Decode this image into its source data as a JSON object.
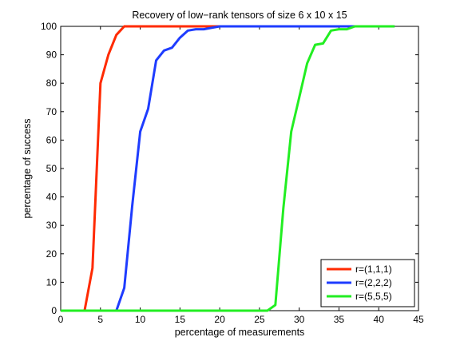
{
  "chart_data": {
    "type": "line",
    "title": "Recovery of low−rank tensors of size 6 x 10 x 15",
    "xlabel": "percentage of measurements",
    "ylabel": "percentage of success",
    "xlim": [
      0,
      45
    ],
    "ylim": [
      0,
      100
    ],
    "xticks": [
      0,
      5,
      10,
      15,
      20,
      25,
      30,
      35,
      40,
      45
    ],
    "yticks": [
      0,
      10,
      20,
      30,
      40,
      50,
      60,
      70,
      80,
      90,
      100
    ],
    "grid": false,
    "legend_position": "bottom-right",
    "series": [
      {
        "name": "r=(1,1,1)",
        "color": "#ff2a00",
        "points": [
          [
            0,
            0
          ],
          [
            3,
            0
          ],
          [
            4,
            15
          ],
          [
            5,
            80
          ],
          [
            6,
            90
          ],
          [
            7,
            97
          ],
          [
            8,
            100
          ],
          [
            20,
            100
          ]
        ]
      },
      {
        "name": "r=(2,2,2)",
        "color": "#1e3cff",
        "points": [
          [
            0,
            0
          ],
          [
            7,
            0
          ],
          [
            8,
            8
          ],
          [
            9,
            37
          ],
          [
            10,
            63
          ],
          [
            11,
            71
          ],
          [
            12,
            88
          ],
          [
            13,
            91.5
          ],
          [
            14,
            92.5
          ],
          [
            15,
            96
          ],
          [
            16,
            98.5
          ],
          [
            17,
            99
          ],
          [
            18,
            99
          ],
          [
            19,
            99.5
          ],
          [
            20,
            100
          ],
          [
            42,
            100
          ]
        ]
      },
      {
        "name": "r=(5,5,5)",
        "color": "#22ee22",
        "points": [
          [
            0,
            0
          ],
          [
            26,
            0
          ],
          [
            27,
            2
          ],
          [
            28,
            36
          ],
          [
            29,
            63
          ],
          [
            30,
            75
          ],
          [
            31,
            87
          ],
          [
            32,
            93.5
          ],
          [
            33,
            94
          ],
          [
            34,
            98.5
          ],
          [
            35,
            99
          ],
          [
            36,
            99
          ],
          [
            37,
            100
          ],
          [
            42,
            100
          ]
        ]
      }
    ]
  }
}
